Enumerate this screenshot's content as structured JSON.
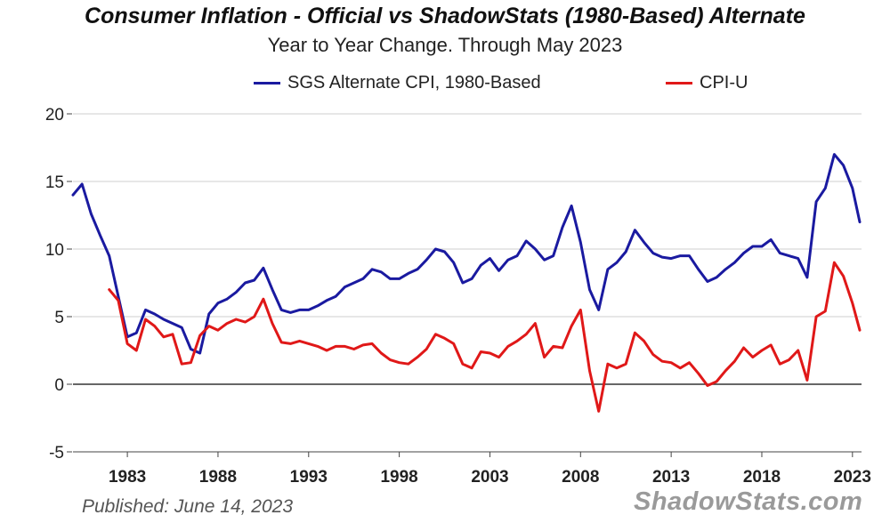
{
  "chart_data": {
    "type": "line",
    "title": "Consumer Inflation - Official vs ShadowStats (1980-Based) Alternate",
    "subtitle": "Year to Year Change. Through May 2023",
    "xlabel": "",
    "ylabel": "",
    "xlim": [
      1980,
      2023.5
    ],
    "ylim": [
      -5,
      20
    ],
    "yticks": [
      20,
      15,
      10,
      5,
      0,
      -5
    ],
    "xticks": [
      1983,
      1988,
      1993,
      1998,
      2003,
      2008,
      2013,
      2018,
      2023
    ],
    "grid": true,
    "legend": "top",
    "series": [
      {
        "name": "SGS Alternate CPI, 1980-Based",
        "color": "#1a1aa0",
        "x": [
          1980,
          1980.5,
          1981,
          1981.5,
          1982,
          1982.5,
          1983,
          1983.5,
          1984,
          1984.5,
          1985,
          1985.5,
          1986,
          1986.5,
          1987,
          1987.5,
          1988,
          1988.5,
          1989,
          1989.5,
          1990,
          1990.5,
          1991,
          1991.5,
          1992,
          1992.5,
          1993,
          1993.5,
          1994,
          1994.5,
          1995,
          1995.5,
          1996,
          1996.5,
          1997,
          1997.5,
          1998,
          1998.5,
          1999,
          1999.5,
          2000,
          2000.5,
          2001,
          2001.5,
          2002,
          2002.5,
          2003,
          2003.5,
          2004,
          2004.5,
          2005,
          2005.5,
          2006,
          2006.5,
          2007,
          2007.5,
          2008,
          2008.5,
          2009,
          2009.5,
          2010,
          2010.5,
          2011,
          2011.5,
          2012,
          2012.5,
          2013,
          2013.5,
          2014,
          2014.5,
          2015,
          2015.5,
          2016,
          2016.5,
          2017,
          2017.5,
          2018,
          2018.5,
          2019,
          2019.5,
          2020,
          2020.5,
          2021,
          2021.5,
          2022,
          2022.5,
          2023,
          2023.4
        ],
        "y": [
          14.0,
          14.8,
          12.6,
          11.0,
          9.5,
          6.5,
          3.5,
          3.8,
          5.5,
          5.2,
          4.8,
          4.5,
          4.2,
          2.6,
          2.3,
          5.2,
          6.0,
          6.3,
          6.8,
          7.5,
          7.7,
          8.6,
          7.0,
          5.5,
          5.3,
          5.5,
          5.5,
          5.8,
          6.2,
          6.5,
          7.2,
          7.5,
          7.8,
          8.5,
          8.3,
          7.8,
          7.8,
          8.2,
          8.5,
          9.2,
          10.0,
          9.8,
          9.0,
          7.5,
          7.8,
          8.8,
          9.3,
          8.4,
          9.2,
          9.5,
          10.6,
          10.0,
          9.2,
          9.5,
          11.6,
          13.2,
          10.5,
          7.0,
          5.5,
          8.5,
          9.0,
          9.8,
          11.4,
          10.5,
          9.7,
          9.4,
          9.3,
          9.5,
          9.5,
          8.5,
          7.6,
          7.9,
          8.5,
          9.0,
          9.7,
          10.2,
          10.2,
          10.7,
          9.7,
          9.5,
          9.3,
          7.9,
          13.5,
          14.5,
          17.0,
          16.2,
          14.5,
          12.0
        ]
      },
      {
        "name": "CPI-U",
        "color": "#e01818",
        "x": [
          1982,
          1982.5,
          1983,
          1983.5,
          1984,
          1984.5,
          1985,
          1985.5,
          1986,
          1986.5,
          1987,
          1987.5,
          1988,
          1988.5,
          1989,
          1989.5,
          1990,
          1990.5,
          1991,
          1991.5,
          1992,
          1992.5,
          1993,
          1993.5,
          1994,
          1994.5,
          1995,
          1995.5,
          1996,
          1996.5,
          1997,
          1997.5,
          1998,
          1998.5,
          1999,
          1999.5,
          2000,
          2000.5,
          2001,
          2001.5,
          2002,
          2002.5,
          2003,
          2003.5,
          2004,
          2004.5,
          2005,
          2005.5,
          2006,
          2006.5,
          2007,
          2007.5,
          2008,
          2008.5,
          2009,
          2009.5,
          2010,
          2010.5,
          2011,
          2011.5,
          2012,
          2012.5,
          2013,
          2013.5,
          2014,
          2014.5,
          2015,
          2015.5,
          2016,
          2016.5,
          2017,
          2017.5,
          2018,
          2018.5,
          2019,
          2019.5,
          2020,
          2020.5,
          2021,
          2021.5,
          2022,
          2022.5,
          2023,
          2023.4
        ],
        "y": [
          7.0,
          6.2,
          3.0,
          2.5,
          4.8,
          4.3,
          3.5,
          3.7,
          1.5,
          1.6,
          3.6,
          4.3,
          4.0,
          4.5,
          4.8,
          4.6,
          5.0,
          6.3,
          4.5,
          3.1,
          3.0,
          3.2,
          3.0,
          2.8,
          2.5,
          2.8,
          2.8,
          2.6,
          2.9,
          3.0,
          2.3,
          1.8,
          1.6,
          1.5,
          2.0,
          2.6,
          3.7,
          3.4,
          3.0,
          1.5,
          1.2,
          2.4,
          2.3,
          2.0,
          2.8,
          3.2,
          3.7,
          4.5,
          2.0,
          2.8,
          2.7,
          4.3,
          5.5,
          1.0,
          -2.0,
          1.5,
          1.2,
          1.5,
          3.8,
          3.2,
          2.2,
          1.7,
          1.6,
          1.2,
          1.6,
          0.8,
          -0.1,
          0.2,
          1.0,
          1.7,
          2.7,
          2.0,
          2.5,
          2.9,
          1.5,
          1.8,
          2.5,
          0.3,
          5.0,
          5.4,
          9.0,
          8.0,
          6.0,
          4.0
        ]
      }
    ]
  },
  "footer": {
    "published": "Published: June 14, 2023",
    "brand": "ShadowStats.com"
  }
}
